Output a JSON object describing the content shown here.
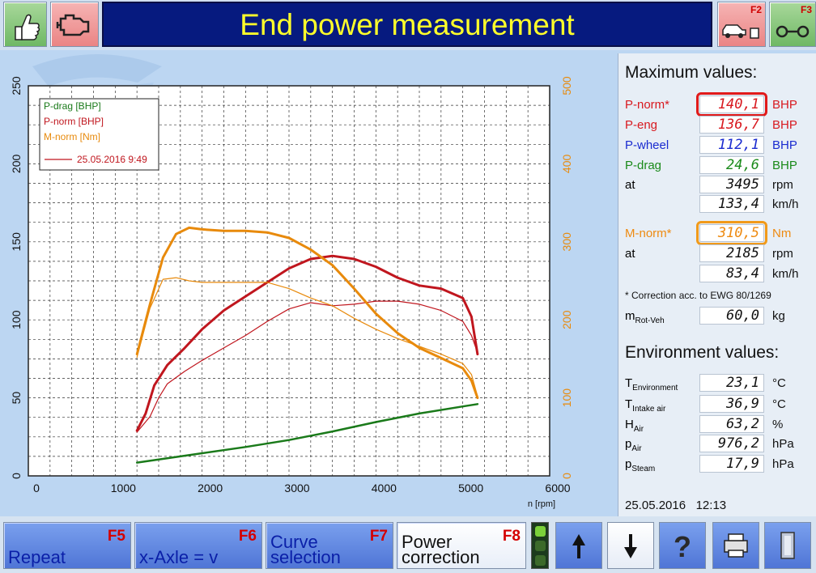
{
  "header": {
    "title": "End power measurement",
    "f2": "F2",
    "f3": "F3"
  },
  "chart_data": {
    "type": "line",
    "xlabel": "n [rpm]",
    "xlim": [
      0,
      6000
    ],
    "x_ticks": [
      0,
      1000,
      2000,
      3000,
      4000,
      5000,
      6000
    ],
    "y_left_ticks": [
      0,
      50,
      100,
      150,
      200,
      250
    ],
    "y_right_ticks": [
      0,
      100,
      200,
      300,
      400,
      500
    ],
    "ylim_left": [
      0,
      250
    ],
    "ylim_right": [
      0,
      500
    ],
    "grid": true,
    "legend_position": "top-left",
    "legend": [
      {
        "label": "P-drag [BHP]",
        "color": "#1a7a1a"
      },
      {
        "label": "P-norm [BHP]",
        "color": "#c0161e"
      },
      {
        "label": "M-norm [Nm]",
        "color": "#e88a0c"
      },
      {
        "label": "25.05.2016 9:49",
        "color": "#c0161e"
      }
    ],
    "series": [
      {
        "axis": "left",
        "color": "#1a7a1a",
        "width": 2.5,
        "x": [
          1250,
          1500,
          2000,
          2500,
          3000,
          3500,
          4000,
          4500,
          5000,
          5170
        ],
        "y": [
          8.5,
          10.5,
          14.5,
          18.5,
          23,
          28.5,
          34.5,
          40,
          44.5,
          46
        ]
      },
      {
        "axis": "left",
        "color": "#c0161e",
        "width": 3,
        "x": [
          1250,
          1350,
          1450,
          1600,
          1800,
          2000,
          2250,
          2500,
          2750,
          3000,
          3250,
          3500,
          3750,
          4000,
          4250,
          4500,
          4750,
          5000,
          5100,
          5170
        ],
        "y": [
          29,
          40,
          58,
          71,
          82,
          94,
          106,
          115,
          124,
          133,
          139,
          141,
          139,
          134,
          127,
          122,
          120,
          114,
          102,
          78
        ]
      },
      {
        "axis": "left",
        "color": "#c0161e",
        "width": 1.2,
        "x": [
          1250,
          1400,
          1500,
          1600,
          1800,
          2000,
          2250,
          2500,
          2750,
          3000,
          3250,
          3500,
          3750,
          4000,
          4250,
          4500,
          4750,
          5000,
          5100,
          5170
        ],
        "y": [
          28,
          38,
          50,
          59,
          67,
          74,
          82,
          90,
          99,
          107,
          111,
          109,
          110,
          112,
          112,
          110,
          106,
          99,
          90,
          79
        ]
      },
      {
        "axis": "right",
        "color": "#e88a0c",
        "width": 3,
        "x": [
          1250,
          1400,
          1550,
          1700,
          1850,
          2000,
          2250,
          2500,
          2750,
          3000,
          3250,
          3500,
          3750,
          4000,
          4250,
          4500,
          4750,
          5000,
          5100,
          5170
        ],
        "y": [
          156,
          220,
          280,
          310,
          318,
          316,
          314,
          314,
          312,
          305,
          290,
          270,
          240,
          208,
          183,
          164,
          151,
          138,
          122,
          100
        ]
      },
      {
        "axis": "right",
        "color": "#e88a0c",
        "width": 1.2,
        "x": [
          1250,
          1400,
          1550,
          1700,
          1850,
          2000,
          2250,
          2500,
          2750,
          3000,
          3250,
          3500,
          3750,
          4000,
          4250,
          4500,
          4750,
          5000,
          5100,
          5170
        ],
        "y": [
          152,
          215,
          252,
          254,
          250,
          248,
          248,
          248,
          248,
          240,
          228,
          218,
          202,
          188,
          176,
          166,
          156,
          144,
          130,
          102
        ]
      }
    ]
  },
  "max_values": {
    "title": "Maximum values:",
    "pnorm": {
      "label": "P-norm*",
      "value": "140,1",
      "unit": "BHP"
    },
    "peng": {
      "label": "P-eng",
      "value": "136,7",
      "unit": "BHP"
    },
    "pwheel": {
      "label": "P-wheel",
      "value": "112,1",
      "unit": "BHP"
    },
    "pdrag": {
      "label": "P-drag",
      "value": "24,6",
      "unit": "BHP"
    },
    "at1": {
      "label": "at",
      "value": "3495",
      "unit": "rpm"
    },
    "speed1": {
      "value": "133,4",
      "unit": "km/h"
    },
    "mnorm": {
      "label": "M-norm*",
      "value": "310,5",
      "unit": "Nm"
    },
    "at2": {
      "label": "at",
      "value": "2185",
      "unit": "rpm"
    },
    "speed2": {
      "value": "83,4",
      "unit": "km/h"
    },
    "note": "* Correction acc. to EWG 80/1269",
    "mrot": {
      "label": "m",
      "sub": "Rot-Veh",
      "value": "60,0",
      "unit": "kg"
    }
  },
  "environment": {
    "title": "Environment values:",
    "items": [
      {
        "label": "T",
        "sub": "Environment",
        "value": "23,1",
        "unit": "°C"
      },
      {
        "label": "T",
        "sub": "Intake air",
        "value": "36,9",
        "unit": "°C"
      },
      {
        "label": "H",
        "sub": "Air",
        "value": "63,2",
        "unit": "%"
      },
      {
        "label": "p",
        "sub": "Air",
        "value": "976,2",
        "unit": "hPa"
      },
      {
        "label": "p",
        "sub": "Steam",
        "value": "17,9",
        "unit": "hPa"
      }
    ]
  },
  "footer": {
    "date": "25.05.2016",
    "time": "12:13"
  },
  "bottombar": {
    "repeat": {
      "label": "Repeat",
      "key": "F5"
    },
    "xaxle": {
      "label": "x-Axle = v",
      "key": "F6"
    },
    "curve": {
      "line1": "Curve",
      "line2": "selection",
      "key": "F7"
    },
    "power": {
      "line1": "Power",
      "line2": "correction",
      "key": "F8"
    }
  }
}
